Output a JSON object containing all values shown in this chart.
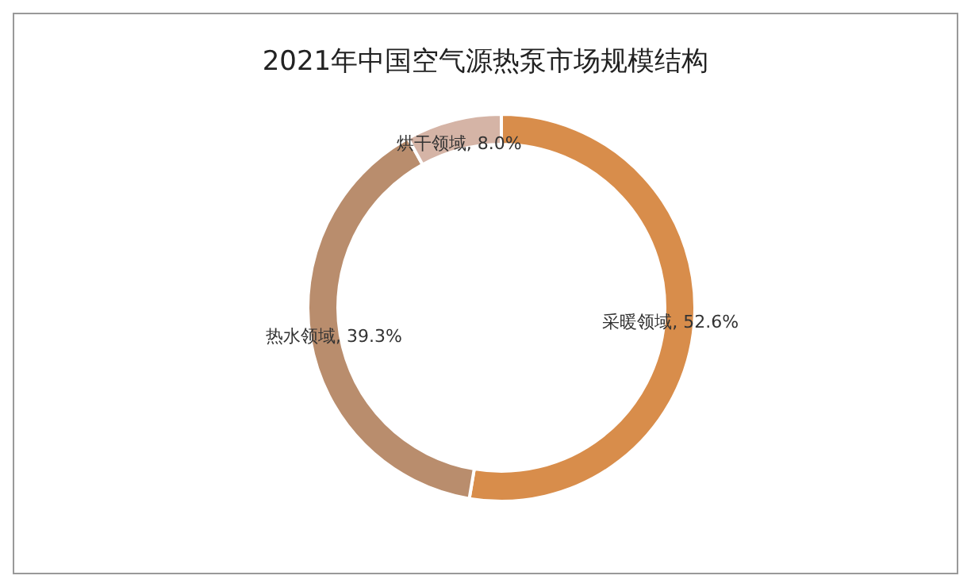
{
  "chart_data": {
    "type": "donut",
    "title": "2021年中国空气源热泵市场规模结构",
    "categories": [
      "采暖领域",
      "热水领域",
      "烘干领域"
    ],
    "values": [
      52.6,
      39.3,
      8.0
    ],
    "value_labels": [
      "52.6%",
      "39.3%",
      "8.0%"
    ],
    "colors": [
      "#d88d4b",
      "#b98d6d",
      "#d5b4a6"
    ],
    "legend": false
  }
}
